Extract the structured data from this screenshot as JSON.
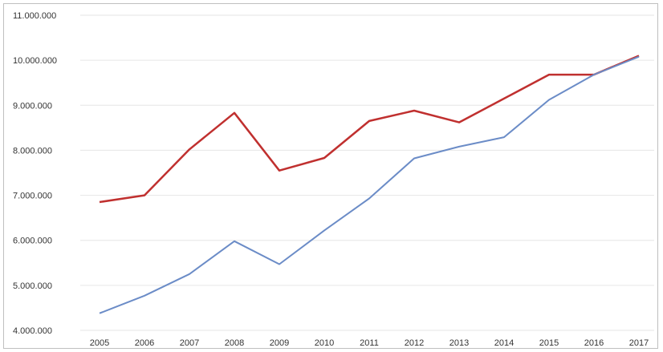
{
  "chart_data": {
    "type": "line",
    "title": "",
    "xlabel": "",
    "ylabel": "",
    "categories": [
      "2005",
      "2006",
      "2007",
      "2008",
      "2009",
      "2010",
      "2011",
      "2012",
      "2013",
      "2014",
      "2015",
      "2016",
      "2017"
    ],
    "ylim": [
      4000000,
      11000000
    ],
    "yticks": [
      4000000,
      5000000,
      6000000,
      7000000,
      8000000,
      9000000,
      10000000,
      11000000
    ],
    "ytick_labels": [
      "4.000.000",
      "5.000.000",
      "6.000.000",
      "7.000.000",
      "8.000.000",
      "9.000.000",
      "10.000.000",
      "11.000.000"
    ],
    "grid": true,
    "legend": "none",
    "series": [
      {
        "color": "#c0302f",
        "values": [
          6850000,
          7000000,
          8020000,
          8830000,
          7550000,
          7830000,
          8650000,
          8880000,
          8620000,
          9150000,
          9680000,
          9680000,
          10100000
        ]
      },
      {
        "color": "#6b8cc7",
        "values": [
          4380000,
          4770000,
          5250000,
          5980000,
          5470000,
          6220000,
          6930000,
          7820000,
          8080000,
          8290000,
          9120000,
          9680000,
          10080000
        ]
      }
    ]
  }
}
